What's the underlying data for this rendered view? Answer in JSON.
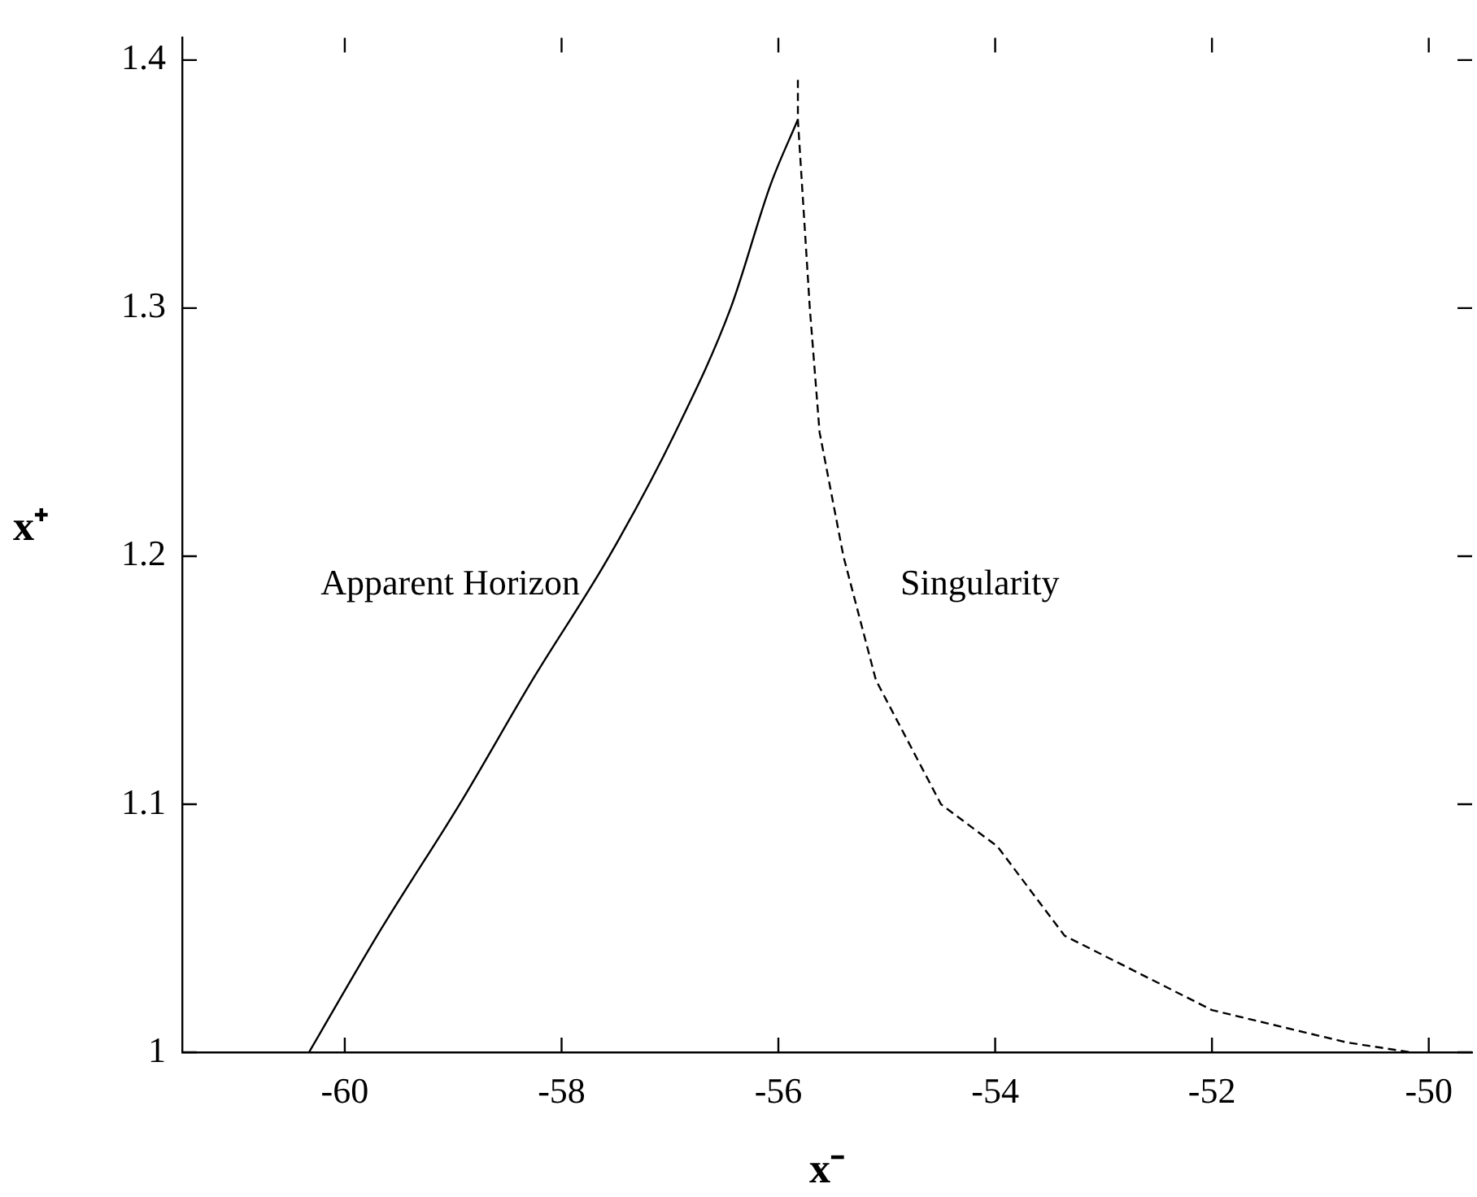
{
  "chart_data": {
    "type": "line",
    "xlabel": "x⁻",
    "ylabel": "x⁺",
    "xlim": [
      -61.5,
      -49.6
    ],
    "ylim": [
      1.0,
      1.409
    ],
    "xticks": [
      -60,
      -58,
      -56,
      -54,
      -52,
      -50
    ],
    "yticks": [
      1,
      1.1,
      1.2,
      1.3,
      1.4
    ],
    "grid": false,
    "legend": false,
    "marker": "none",
    "series": [
      {
        "name": "Apparent Horizon",
        "color": "#000000",
        "line_style": "solid",
        "x": [
          -60.33,
          -59.66,
          -58.94,
          -58.27,
          -57.56,
          -56.95,
          -56.44,
          -56.07,
          -55.82
        ],
        "values": [
          1.0,
          1.05,
          1.1,
          1.15,
          1.2,
          1.25,
          1.3,
          1.35,
          1.376
        ]
      },
      {
        "name": "Singularity",
        "color": "#000000",
        "line_style": "dashed",
        "x": [
          -55.82,
          -55.82,
          -55.71,
          -55.62,
          -55.4,
          -55.1,
          -54.5,
          -53.98,
          -53.36,
          -52.0,
          -50.76,
          -50.17
        ],
        "values": [
          1.392,
          1.376,
          1.3,
          1.25,
          1.2,
          1.15,
          1.1,
          1.083,
          1.047,
          1.017,
          1.004,
          1.0
        ]
      }
    ]
  }
}
